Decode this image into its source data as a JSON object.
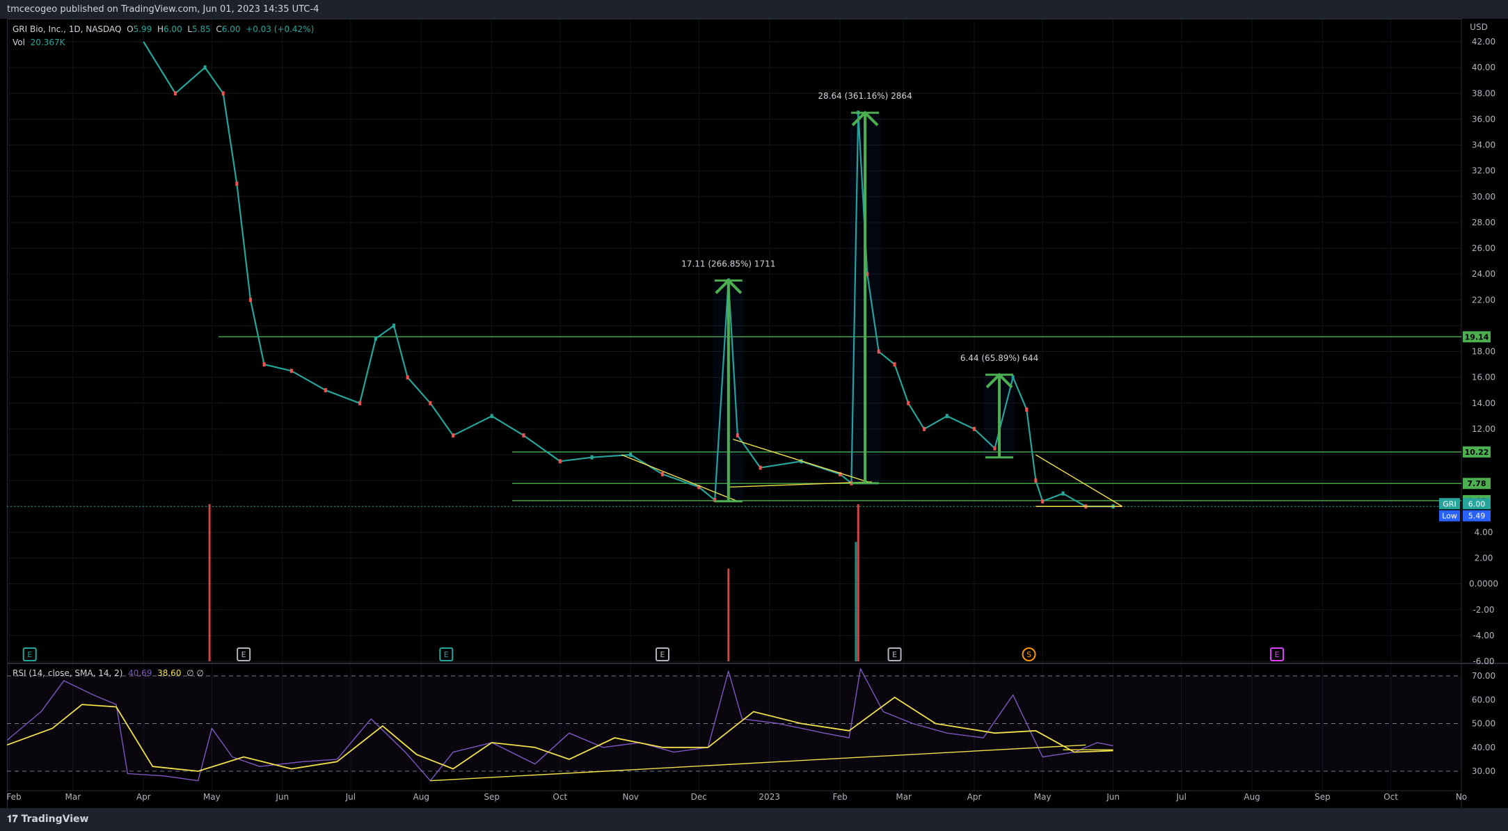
{
  "header": {
    "publisher_text": "tmcecogeo published on TradingView.com, Jun 01, 2023 14:35 UTC-4"
  },
  "legend": {
    "symbol": "GRI Bio, Inc., 1D, NASDAQ",
    "o_label": "O",
    "o_value": "5.99",
    "h_label": "H",
    "h_value": "6.00",
    "l_label": "L",
    "l_value": "5.85",
    "c_label": "C",
    "c_value": "6.00",
    "change": "+0.03 (+0.42%)",
    "vol_label": "Vol",
    "vol_value": "20.367K"
  },
  "rsi_legend": {
    "label": "RSI (14, close, SMA, 14, 2)",
    "value1": "40.69",
    "value2": "38.60",
    "tail": "∅ ∅"
  },
  "footer": {
    "brand": "TradingView"
  },
  "chart_data": [
    {
      "type": "candlestick",
      "title": "GRI Bio, Inc., 1D, NASDAQ",
      "currency_label": "USD",
      "y_ticks": [
        "42.00",
        "40.00",
        "38.00",
        "36.00",
        "34.00",
        "32.00",
        "30.00",
        "28.00",
        "26.00",
        "24.00",
        "22.00",
        "20.00",
        "18.00",
        "16.00",
        "14.00",
        "12.00",
        "10.00",
        "8.00",
        "6.00",
        "4.00",
        "2.00",
        "0.0000",
        "-2.00",
        "-4.00",
        "-6.00"
      ],
      "ylim": [
        -6,
        42
      ],
      "x_ticks": [
        "Feb",
        "Mar",
        "Apr",
        "May",
        "Jun",
        "Jul",
        "Aug",
        "Sep",
        "Oct",
        "Nov",
        "Dec",
        "2023",
        "Feb",
        "Mar",
        "Apr",
        "May",
        "Jun",
        "Jul",
        "Aug",
        "Sep",
        "Oct",
        "No"
      ],
      "close_path": [
        {
          "x": "2022-04-01",
          "y": 42
        },
        {
          "x": "2022-04-15",
          "y": 38
        },
        {
          "x": "2022-04-28",
          "y": 40
        },
        {
          "x": "2022-05-06",
          "y": 38
        },
        {
          "x": "2022-05-12",
          "y": 31
        },
        {
          "x": "2022-05-18",
          "y": 22
        },
        {
          "x": "2022-05-24",
          "y": 17
        },
        {
          "x": "2022-06-05",
          "y": 16.5
        },
        {
          "x": "2022-06-20",
          "y": 15
        },
        {
          "x": "2022-07-05",
          "y": 14
        },
        {
          "x": "2022-07-12",
          "y": 19
        },
        {
          "x": "2022-07-20",
          "y": 20
        },
        {
          "x": "2022-07-26",
          "y": 16
        },
        {
          "x": "2022-08-05",
          "y": 14
        },
        {
          "x": "2022-08-15",
          "y": 11.5
        },
        {
          "x": "2022-09-01",
          "y": 13
        },
        {
          "x": "2022-09-15",
          "y": 11.5
        },
        {
          "x": "2022-10-01",
          "y": 9.5
        },
        {
          "x": "2022-10-15",
          "y": 9.8
        },
        {
          "x": "2022-11-01",
          "y": 10
        },
        {
          "x": "2022-11-15",
          "y": 8.5
        },
        {
          "x": "2022-12-01",
          "y": 7.5
        },
        {
          "x": "2022-12-08",
          "y": 6.5
        },
        {
          "x": "2022-12-14",
          "y": 23.5
        },
        {
          "x": "2022-12-18",
          "y": 11.5
        },
        {
          "x": "2022-12-28",
          "y": 9
        },
        {
          "x": "2023-01-15",
          "y": 9.5
        },
        {
          "x": "2023-02-01",
          "y": 8.5
        },
        {
          "x": "2023-02-06",
          "y": 7.8
        },
        {
          "x": "2023-02-09",
          "y": 36.5
        },
        {
          "x": "2023-02-13",
          "y": 24
        },
        {
          "x": "2023-02-18",
          "y": 18
        },
        {
          "x": "2023-02-25",
          "y": 17
        },
        {
          "x": "2023-03-03",
          "y": 14
        },
        {
          "x": "2023-03-10",
          "y": 12
        },
        {
          "x": "2023-03-20",
          "y": 13
        },
        {
          "x": "2023-04-01",
          "y": 12
        },
        {
          "x": "2023-04-10",
          "y": 10.5
        },
        {
          "x": "2023-04-18",
          "y": 16
        },
        {
          "x": "2023-04-24",
          "y": 13.5
        },
        {
          "x": "2023-04-28",
          "y": 8
        },
        {
          "x": "2023-05-01",
          "y": 6.4
        },
        {
          "x": "2023-05-10",
          "y": 7
        },
        {
          "x": "2023-05-20",
          "y": 6
        },
        {
          "x": "2023-06-01",
          "y": 6.0
        }
      ],
      "horizontal_levels": [
        {
          "value": 19.14,
          "label": "19.14",
          "color": "#4caf50"
        },
        {
          "value": 10.22,
          "label": "10.22",
          "color": "#4caf50"
        },
        {
          "value": 7.78,
          "label": "7.78",
          "color": "#4caf50"
        },
        {
          "value": 6.45,
          "label": "6.45",
          "color": "#4caf50"
        }
      ],
      "price_labels": [
        {
          "value": 6.0,
          "tag": "GRI",
          "text": "6.00",
          "color": "#26a69a"
        },
        {
          "value": 5.49,
          "tag": "Low",
          "text": "5.49",
          "color": "#2962ff"
        }
      ],
      "measure_annotations": [
        {
          "text": "17.11 (266.85%) 1711",
          "x": "2022-12-14",
          "y_from": 6.4,
          "y_to": 23.5
        },
        {
          "text": "28.64 (361.16%) 2864",
          "x": "2023-02-12",
          "y_from": 7.8,
          "y_to": 36.5
        },
        {
          "text": "6.44 (65.89%) 644",
          "x": "2023-04-12",
          "y_from": 9.8,
          "y_to": 16.2
        }
      ],
      "trend_lines": [
        {
          "from": {
            "x": "2022-10-28",
            "y": 10.0
          },
          "to": {
            "x": "2022-12-18",
            "y": 6.4
          }
        },
        {
          "from": {
            "x": "2022-12-16",
            "y": 11.2
          },
          "to": {
            "x": "2023-02-15",
            "y": 7.8
          }
        },
        {
          "from": {
            "x": "2022-12-14",
            "y": 7.5
          },
          "to": {
            "x": "2023-02-15",
            "y": 7.9
          }
        },
        {
          "from": {
            "x": "2023-04-28",
            "y": 10.0
          },
          "to": {
            "x": "2023-06-05",
            "y": 6.0
          }
        },
        {
          "from": {
            "x": "2023-04-28",
            "y": 6.0
          },
          "to": {
            "x": "2023-06-05",
            "y": 6.0
          }
        }
      ],
      "volume_spikes": [
        {
          "x": "2022-04-30",
          "value": 1.0,
          "color": "#ef5350"
        },
        {
          "x": "2022-12-14",
          "value": 0.59,
          "color": "#ef5350"
        },
        {
          "x": "2023-02-09",
          "value": 1.0,
          "color": "#ef5350"
        },
        {
          "x": "2023-02-08",
          "value": 0.76,
          "color": "#26a69a"
        }
      ],
      "event_markers": [
        {
          "x": "2022-02-10",
          "letter": "E",
          "color": "#26a69a"
        },
        {
          "x": "2022-05-15",
          "letter": "E",
          "color": "#b2b5be"
        },
        {
          "x": "2022-08-12",
          "letter": "E",
          "color": "#26a69a"
        },
        {
          "x": "2022-11-15",
          "letter": "E",
          "color": "#b2b5be"
        },
        {
          "x": "2023-02-25",
          "letter": "E",
          "color": "#b2b5be"
        },
        {
          "x": "2023-04-25",
          "letter": "S",
          "color": "#ff9800"
        },
        {
          "x": "2023-08-12",
          "letter": "E",
          "color": "#e040fb"
        }
      ]
    },
    {
      "type": "line",
      "title": "RSI (14, close, SMA, 14, 2)",
      "y_ticks": [
        "70.00",
        "60.00",
        "50.00",
        "40.00",
        "30.00"
      ],
      "ylim": [
        24,
        74
      ],
      "bands": [
        70,
        50,
        30
      ],
      "series": [
        {
          "name": "RSI",
          "color": "#7e57c2",
          "values": [
            {
              "x": "2022-01-31",
              "y": 43
            },
            {
              "x": "2022-02-15",
              "y": 55
            },
            {
              "x": "2022-02-25",
              "y": 68
            },
            {
              "x": "2022-03-10",
              "y": 62
            },
            {
              "x": "2022-03-20",
              "y": 58
            },
            {
              "x": "2022-03-25",
              "y": 29
            },
            {
              "x": "2022-04-10",
              "y": 28
            },
            {
              "x": "2022-04-25",
              "y": 26
            },
            {
              "x": "2022-05-01",
              "y": 48
            },
            {
              "x": "2022-05-10",
              "y": 36
            },
            {
              "x": "2022-05-22",
              "y": 32
            },
            {
              "x": "2022-06-10",
              "y": 34
            },
            {
              "x": "2022-06-25",
              "y": 35
            },
            {
              "x": "2022-07-10",
              "y": 52
            },
            {
              "x": "2022-07-25",
              "y": 38
            },
            {
              "x": "2022-08-05",
              "y": 26
            },
            {
              "x": "2022-08-15",
              "y": 38
            },
            {
              "x": "2022-09-01",
              "y": 42
            },
            {
              "x": "2022-09-20",
              "y": 33
            },
            {
              "x": "2022-10-05",
              "y": 46
            },
            {
              "x": "2022-10-20",
              "y": 40
            },
            {
              "x": "2022-11-05",
              "y": 42
            },
            {
              "x": "2022-11-20",
              "y": 38
            },
            {
              "x": "2022-12-05",
              "y": 40
            },
            {
              "x": "2022-12-14",
              "y": 72
            },
            {
              "x": "2022-12-20",
              "y": 52
            },
            {
              "x": "2023-01-05",
              "y": 50
            },
            {
              "x": "2023-01-25",
              "y": 46
            },
            {
              "x": "2023-02-05",
              "y": 44
            },
            {
              "x": "2023-02-10",
              "y": 73
            },
            {
              "x": "2023-02-20",
              "y": 55
            },
            {
              "x": "2023-03-05",
              "y": 50
            },
            {
              "x": "2023-03-20",
              "y": 46
            },
            {
              "x": "2023-04-05",
              "y": 44
            },
            {
              "x": "2023-04-18",
              "y": 62
            },
            {
              "x": "2023-04-26",
              "y": 46
            },
            {
              "x": "2023-05-01",
              "y": 36
            },
            {
              "x": "2023-05-15",
              "y": 38
            },
            {
              "x": "2023-05-25",
              "y": 42
            },
            {
              "x": "2023-06-01",
              "y": 40.69
            }
          ]
        },
        {
          "name": "SMA",
          "color": "#f2e14b",
          "values": [
            {
              "x": "2022-01-31",
              "y": 41
            },
            {
              "x": "2022-02-20",
              "y": 48
            },
            {
              "x": "2022-03-05",
              "y": 58
            },
            {
              "x": "2022-03-20",
              "y": 57
            },
            {
              "x": "2022-04-05",
              "y": 32
            },
            {
              "x": "2022-04-25",
              "y": 30
            },
            {
              "x": "2022-05-15",
              "y": 36
            },
            {
              "x": "2022-06-05",
              "y": 31
            },
            {
              "x": "2022-06-25",
              "y": 34
            },
            {
              "x": "2022-07-15",
              "y": 49
            },
            {
              "x": "2022-07-30",
              "y": 37
            },
            {
              "x": "2022-08-15",
              "y": 31
            },
            {
              "x": "2022-09-01",
              "y": 42
            },
            {
              "x": "2022-09-20",
              "y": 40
            },
            {
              "x": "2022-10-05",
              "y": 35
            },
            {
              "x": "2022-10-25",
              "y": 44
            },
            {
              "x": "2022-11-15",
              "y": 40
            },
            {
              "x": "2022-12-05",
              "y": 40
            },
            {
              "x": "2022-12-25",
              "y": 55
            },
            {
              "x": "2023-01-15",
              "y": 50
            },
            {
              "x": "2023-02-05",
              "y": 47
            },
            {
              "x": "2023-02-25",
              "y": 61
            },
            {
              "x": "2023-03-15",
              "y": 50
            },
            {
              "x": "2023-04-10",
              "y": 46
            },
            {
              "x": "2023-04-28",
              "y": 47
            },
            {
              "x": "2023-05-15",
              "y": 38
            },
            {
              "x": "2023-06-01",
              "y": 38.6
            }
          ]
        }
      ],
      "trend_lines": [
        {
          "from": {
            "x": "2022-08-05",
            "y": 26
          },
          "to": {
            "x": "2023-05-20",
            "y": 41
          }
        },
        {
          "from": {
            "x": "2023-05-10",
            "y": 39
          },
          "to": {
            "x": "2023-06-01",
            "y": 39
          }
        }
      ]
    }
  ]
}
